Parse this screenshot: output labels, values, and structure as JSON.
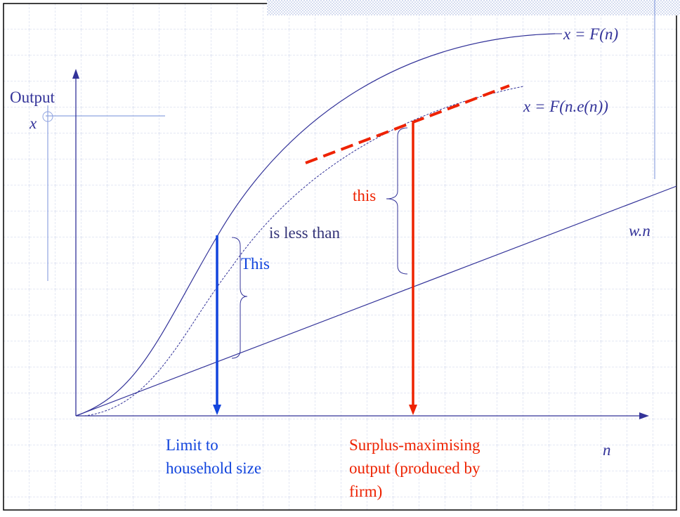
{
  "axis": {
    "y_label": "Output",
    "y_symbol": "x",
    "x_symbol": "n"
  },
  "curves": {
    "production": "x = F(n)",
    "effort_production": "x = F(n.e(n))",
    "wage_cost": "w.n"
  },
  "annotations": {
    "this": "this",
    "is_less_than": "is less than",
    "This": "This"
  },
  "labels": {
    "household_limit": [
      "Limit to",
      "household size"
    ],
    "firm_output": [
      "Surplus-maximising",
      "output (produced by",
      "firm)"
    ]
  }
}
